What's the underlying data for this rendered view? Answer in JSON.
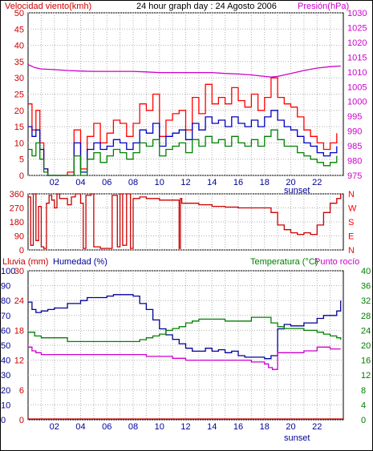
{
  "chart_data": [
    {
      "id": "wind-pressure",
      "type": "line",
      "title": "24 hour graph day : 24 Agosto 2006",
      "left_axis_label": "Velocidad viento(kmh)",
      "right_axis_label": "Presión(hPa)",
      "x_ticks": [
        "02",
        "04",
        "06",
        "08",
        "10",
        "12",
        "14",
        "16",
        "18",
        "20",
        "22"
      ],
      "x_extra_label": "sunset",
      "xlim": [
        0,
        24
      ],
      "ylim_left": [
        0,
        50
      ],
      "ylim_right": [
        975,
        1030
      ],
      "y_left_ticks": [
        0,
        5,
        10,
        15,
        20,
        25,
        30,
        35,
        40,
        45,
        50
      ],
      "y_right_ticks": [
        975,
        980,
        985,
        990,
        995,
        1000,
        1005,
        1010,
        1015,
        1020,
        1025,
        1030
      ],
      "colors": {
        "gust": "#ff0000",
        "avg": "#0000c0",
        "dir_wind": "#008000",
        "pressure": "#cc00cc"
      },
      "series": [
        {
          "key": "gust",
          "x": [
            0,
            0.3,
            0.6,
            0.9,
            1.2,
            1.5,
            2,
            3,
            3.5,
            4,
            4.5,
            5,
            5.5,
            6,
            6.5,
            7,
            7.5,
            8,
            8.5,
            9,
            9.5,
            10,
            10.5,
            11,
            11.5,
            12,
            12.5,
            13,
            13.5,
            14,
            14.5,
            15,
            15.5,
            16,
            16.5,
            17,
            17.5,
            18,
            18.5,
            19,
            19.5,
            20,
            20.5,
            21,
            21.5,
            22,
            22.5,
            23,
            23.5
          ],
          "y": [
            22,
            14,
            20,
            10,
            2,
            0,
            0,
            1,
            14,
            2,
            12,
            16,
            10,
            13,
            17,
            16,
            12,
            16,
            22,
            20,
            25,
            12,
            17,
            19,
            20,
            14,
            24,
            19,
            28,
            22,
            24,
            22,
            27,
            23,
            21,
            25,
            20,
            24,
            30,
            24,
            22,
            21,
            18,
            14,
            12,
            10,
            8,
            10,
            13
          ]
        },
        {
          "key": "avg",
          "x": [
            0,
            0.3,
            0.6,
            0.9,
            1.2,
            1.5,
            2,
            3,
            3.5,
            4,
            4.5,
            5,
            5.5,
            6,
            6.5,
            7,
            7.5,
            8,
            8.5,
            9,
            9.5,
            10,
            10.5,
            11,
            11.5,
            12,
            12.5,
            13,
            13.5,
            14,
            14.5,
            15,
            15.5,
            16,
            16.5,
            17,
            17.5,
            18,
            18.5,
            19,
            19.5,
            20,
            20.5,
            21,
            21.5,
            22,
            22.5,
            23,
            23.5
          ],
          "y": [
            15,
            12,
            14,
            8,
            2,
            0,
            0,
            0,
            10,
            1,
            8,
            10,
            8,
            9,
            11,
            10,
            8,
            10,
            14,
            13,
            16,
            9,
            12,
            13,
            14,
            11,
            16,
            14,
            18,
            16,
            17,
            15,
            18,
            16,
            15,
            17,
            15,
            18,
            20,
            17,
            15,
            14,
            12,
            10,
            9,
            7,
            6,
            7,
            9
          ]
        },
        {
          "key": "dir_wind",
          "x": [
            0,
            0.3,
            0.6,
            0.9,
            1.2,
            1.5,
            2,
            3,
            3.5,
            4,
            4.5,
            5,
            5.5,
            6,
            6.5,
            7,
            7.5,
            8,
            8.5,
            9,
            9.5,
            10,
            10.5,
            11,
            11.5,
            12,
            12.5,
            13,
            13.5,
            14,
            14.5,
            15,
            15.5,
            16,
            16.5,
            17,
            17.5,
            18,
            18.5,
            19,
            19.5,
            20,
            20.5,
            21,
            21.5,
            22,
            22.5,
            23,
            23.5
          ],
          "y": [
            8,
            6,
            10,
            5,
            1,
            0,
            0,
            0,
            6,
            0,
            5,
            7,
            4,
            6,
            8,
            7,
            5,
            7,
            10,
            9,
            11,
            6,
            8,
            9,
            10,
            7,
            11,
            9,
            12,
            10,
            11,
            9,
            12,
            10,
            9,
            11,
            9,
            12,
            14,
            11,
            9,
            9,
            7,
            6,
            5,
            4,
            3,
            4,
            6
          ]
        },
        {
          "key": "pressure",
          "x": [
            0,
            0.5,
            1,
            2,
            3,
            4,
            5,
            6,
            7,
            8,
            9,
            10,
            11,
            12,
            13,
            14,
            15,
            16,
            17,
            18,
            18.5,
            19,
            20,
            21,
            22,
            23,
            23.8
          ],
          "y": [
            1012.5,
            1011.5,
            1011,
            1010.8,
            1010.5,
            1010.3,
            1010.2,
            1010.2,
            1010.2,
            1010.2,
            1010,
            1009.8,
            1009.8,
            1009.8,
            1009.8,
            1009.8,
            1009.5,
            1009.3,
            1009,
            1008.5,
            1008.3,
            1008.5,
            1009.5,
            1010.5,
            1011.3,
            1011.8,
            1012
          ]
        }
      ]
    },
    {
      "id": "wind-direction",
      "type": "line",
      "y_left_ticks": [
        0,
        90,
        180,
        270,
        360
      ],
      "ylim": [
        0,
        360
      ],
      "right_labels": [
        "N",
        "W",
        "S",
        "E",
        "N"
      ],
      "right_label_colors": [
        "#ff0000",
        "#ff0000",
        "#ff0000",
        "#ff0000",
        "#ff0000"
      ],
      "color": "#cc0000",
      "series": [
        {
          "key": "direction",
          "x": [
            0,
            0.2,
            0.4,
            0.6,
            0.8,
            1,
            1.2,
            1.4,
            1.6,
            1.8,
            2,
            2.2,
            2.4,
            3,
            3.3,
            3.6,
            4,
            4.2,
            4.4,
            4.8,
            5,
            5.5,
            6,
            6.4,
            6.8,
            7,
            7.2,
            7.5,
            7.8,
            8,
            8.5,
            9,
            10,
            11,
            11.5,
            11.6,
            11.7,
            12,
            13,
            14,
            15,
            16,
            17,
            18,
            18.5,
            19,
            19.5,
            20,
            20.5,
            21,
            21.5,
            22,
            22.5,
            23,
            23.5,
            23.8
          ],
          "y": [
            340,
            30,
            360,
            60,
            280,
            20,
            10,
            300,
            350,
            320,
            270,
            360,
            330,
            290,
            340,
            360,
            300,
            10,
            350,
            360,
            20,
            10,
            10,
            350,
            20,
            360,
            30,
            360,
            10,
            330,
            340,
            330,
            320,
            320,
            10,
            330,
            300,
            300,
            290,
            280,
            275,
            270,
            270,
            270,
            240,
            160,
            130,
            110,
            100,
            110,
            100,
            160,
            240,
            300,
            330,
            360
          ]
        }
      ]
    },
    {
      "id": "rain-humidity-temp",
      "type": "line",
      "left_axis_label": "Lluvia (mm)",
      "humidity_axis_label": "Humedad (%)",
      "right_axis_label_temp": "Temperatura (°C)",
      "right_axis_label_dew": "Punto rocío",
      "y_rain_ticks": [
        0,
        6,
        12,
        18,
        24,
        30
      ],
      "y_rain_tick_labels": [
        "0",
        "6",
        "12",
        "18",
        "24",
        "30"
      ],
      "y_hum_ticks": [
        0,
        10,
        20,
        30,
        40,
        50,
        60,
        70,
        80,
        90,
        100
      ],
      "y_right_ticks": [
        0,
        4,
        8,
        12,
        16,
        20,
        24,
        28,
        32,
        36,
        40
      ],
      "ylim_hum": [
        0,
        100
      ],
      "ylim_temp": [
        0,
        40
      ],
      "colors": {
        "humidity": "#000099",
        "temperature": "#008000",
        "dew_point": "#cc00cc",
        "rain": "#cc0000"
      },
      "series": [
        {
          "key": "humidity",
          "x": [
            0,
            0.3,
            0.6,
            1,
            1.5,
            2,
            3,
            4,
            4.5,
            5,
            5.5,
            6,
            6.5,
            7,
            7.5,
            8,
            8.5,
            9,
            9.5,
            10,
            10.5,
            11,
            11.5,
            12,
            12.5,
            13,
            13.5,
            14,
            14.5,
            15,
            15.5,
            16,
            16.5,
            17,
            17.5,
            18,
            18.5,
            19,
            19.5,
            20,
            21,
            22,
            22.5,
            23,
            23.5,
            23.8
          ],
          "y": [
            79,
            74,
            72,
            73,
            74,
            75,
            78,
            80,
            82,
            82,
            82,
            83,
            84,
            84,
            84,
            83,
            78,
            74,
            67,
            61,
            57,
            54,
            51,
            48,
            46,
            46,
            48,
            46,
            47,
            45,
            46,
            43,
            42,
            42,
            42,
            41,
            43,
            61,
            64,
            63,
            65,
            68,
            70,
            70,
            73,
            80
          ]
        },
        {
          "key": "temperature",
          "x": [
            0,
            0.5,
            1,
            2,
            3,
            4,
            5,
            6,
            7,
            7.5,
            8,
            8.5,
            9,
            9.5,
            10,
            10.5,
            11,
            11.5,
            12,
            12.5,
            13,
            14,
            15,
            16,
            17,
            17.5,
            18,
            18.5,
            19,
            19.5,
            20,
            21,
            22,
            22.5,
            23,
            23.5,
            23.8
          ],
          "y": [
            23.5,
            22.5,
            22,
            22,
            21,
            21,
            21,
            21,
            21,
            21,
            21,
            21.5,
            22,
            22.5,
            23,
            24,
            24.5,
            25,
            26,
            26.5,
            27,
            27,
            26.5,
            26.5,
            27.5,
            27.5,
            27.5,
            26,
            25,
            24.5,
            24.5,
            24,
            23.5,
            23,
            22.5,
            22,
            21.5
          ]
        },
        {
          "key": "dew_point",
          "x": [
            0,
            0.3,
            0.6,
            1,
            2,
            3,
            4,
            5,
            6,
            7,
            8,
            9,
            10,
            11,
            12,
            13,
            14,
            15,
            16,
            17,
            18,
            18.3,
            18.6,
            19,
            19.5,
            20,
            21,
            22,
            22.5,
            23,
            23.5,
            23.8
          ],
          "y": [
            19.5,
            18.5,
            18,
            17.5,
            17.5,
            17.5,
            17.5,
            17.5,
            17.5,
            17.5,
            17.5,
            17,
            17,
            16.5,
            16,
            16,
            16,
            16,
            16,
            15.5,
            15,
            14,
            13.5,
            18,
            18,
            18,
            18.5,
            19.5,
            19.5,
            19,
            19,
            19
          ]
        },
        {
          "key": "rain",
          "x": [
            0,
            24
          ],
          "y": [
            0,
            0
          ]
        }
      ]
    }
  ],
  "x_ticks_bottom": [
    "02",
    "04",
    "06",
    "08",
    "10",
    "12",
    "14",
    "16",
    "18",
    "20",
    "22"
  ],
  "x_extra_label_bottom": "sunset"
}
